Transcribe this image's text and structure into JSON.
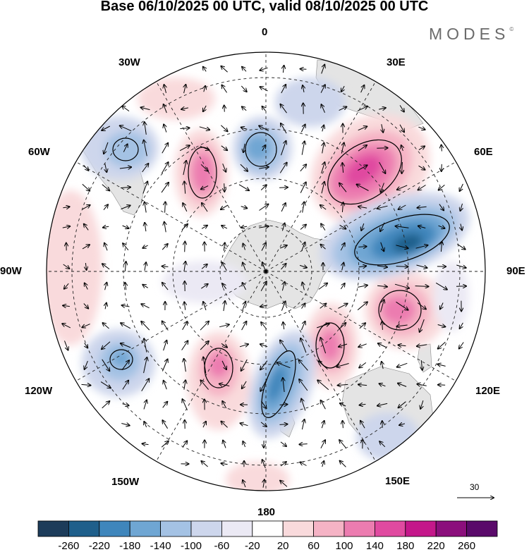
{
  "title": "Base 06/10/2025 00 UTC, valid 08/10/2025 00 UTC",
  "brand": {
    "name": "MODES",
    "mark": "©"
  },
  "map": {
    "projection": "south-polar-stereographic",
    "meridian_labels": [
      "0",
      "30E",
      "60E",
      "90E",
      "120E",
      "150E",
      "180",
      "150W",
      "120W",
      "90W",
      "60W",
      "30W"
    ],
    "ocean_color": "#ffffff",
    "land_color": "#e6e6e6"
  },
  "reference_vector": {
    "label": "30"
  },
  "colorbar": {
    "ticks": [
      "-260",
      "-220",
      "-180",
      "-140",
      "-100",
      "-60",
      "-20",
      "20",
      "60",
      "100",
      "140",
      "180",
      "220",
      "260"
    ],
    "colors": [
      "#1d3c5a",
      "#1f5f8b",
      "#3f86bc",
      "#6fa6d3",
      "#a4c2e4",
      "#cdd6ec",
      "#ebe9f4",
      "#ffffff",
      "#f9dadc",
      "#f5b3c5",
      "#ec7cb0",
      "#e04aa0",
      "#c4178a",
      "#8b0f7c",
      "#5a0a6a"
    ]
  }
}
